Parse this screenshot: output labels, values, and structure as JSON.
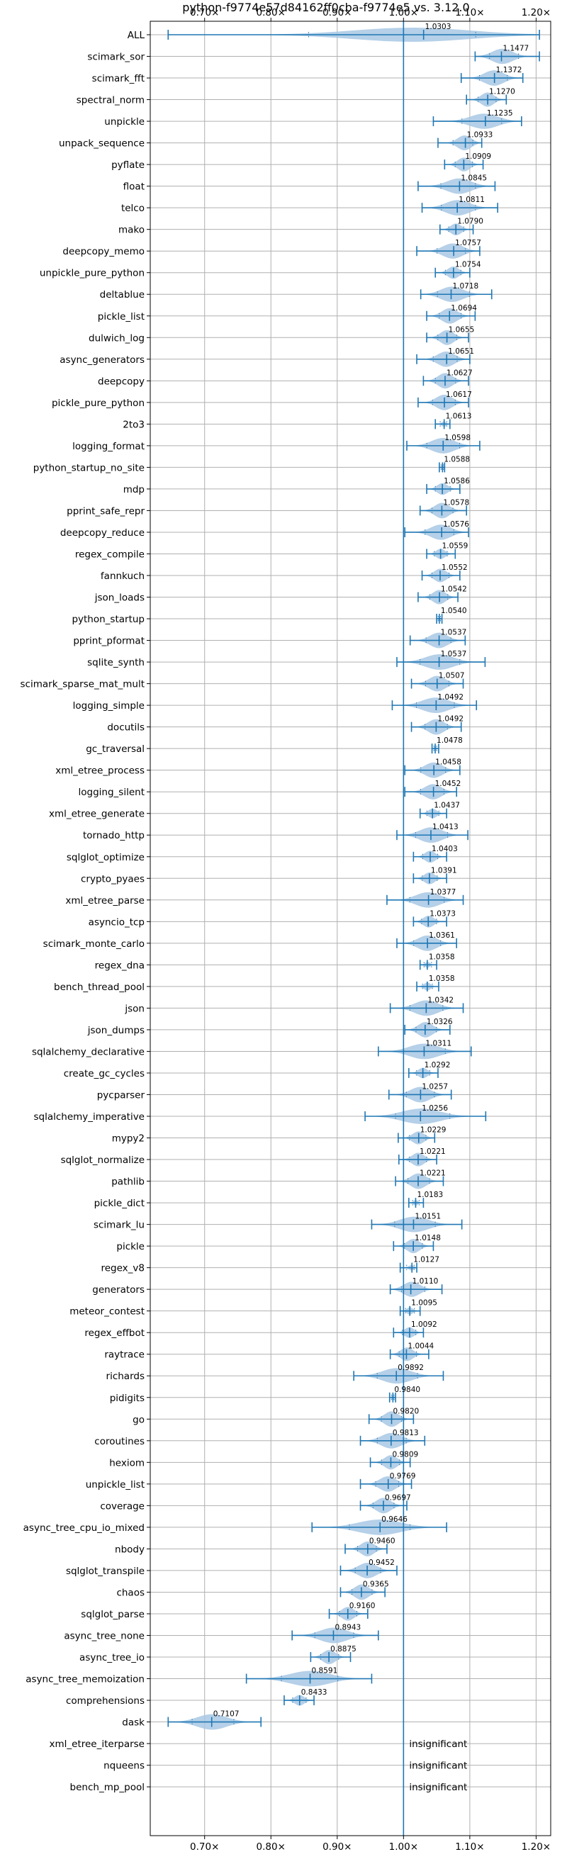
{
  "chart_data": {
    "type": "violin",
    "title": "python-f9774e57d84162ff0cba-f9774e5 vs. 3.12.0",
    "x_ticks": [
      0.7,
      0.8,
      0.9,
      1.0,
      1.1,
      1.2
    ],
    "x_tick_labels": [
      "0.70×",
      "0.80×",
      "0.90×",
      "1.00×",
      "1.10×",
      "1.20×"
    ],
    "xlim": [
      0.618,
      1.222
    ],
    "reference_line": 1.0,
    "grid": true,
    "colors": {
      "violin": "#a8c8e4",
      "line": "#1f77b4",
      "axis": "#000000",
      "grid": "#b0b0b0"
    },
    "benchmarks": [
      {
        "name": "ALL",
        "value": 1.0303,
        "label": "1.0303",
        "min": 0.645,
        "max": 1.205
      },
      {
        "name": "scimark_sor",
        "value": 1.1477,
        "label": "1.1477",
        "min": 1.108,
        "max": 1.205
      },
      {
        "name": "scimark_fft",
        "value": 1.1372,
        "label": "1.1372",
        "min": 1.087,
        "max": 1.18
      },
      {
        "name": "spectral_norm",
        "value": 1.127,
        "label": "1.1270",
        "min": 1.095,
        "max": 1.155
      },
      {
        "name": "unpickle",
        "value": 1.1235,
        "label": "1.1235",
        "min": 1.045,
        "max": 1.178
      },
      {
        "name": "unpack_sequence",
        "value": 1.0933,
        "label": "1.0933",
        "min": 1.052,
        "max": 1.118
      },
      {
        "name": "pyflate",
        "value": 1.0909,
        "label": "1.0909",
        "min": 1.062,
        "max": 1.12
      },
      {
        "name": "float",
        "value": 1.0845,
        "label": "1.0845",
        "min": 1.022,
        "max": 1.138
      },
      {
        "name": "telco",
        "value": 1.0811,
        "label": "1.0811",
        "min": 1.028,
        "max": 1.142
      },
      {
        "name": "mako",
        "value": 1.079,
        "label": "1.0790",
        "min": 1.055,
        "max": 1.105
      },
      {
        "name": "deepcopy_memo",
        "value": 1.0757,
        "label": "1.0757",
        "min": 1.02,
        "max": 1.115
      },
      {
        "name": "unpickle_pure_python",
        "value": 1.0754,
        "label": "1.0754",
        "min": 1.048,
        "max": 1.1
      },
      {
        "name": "deltablue",
        "value": 1.0718,
        "label": "1.0718",
        "min": 1.026,
        "max": 1.133
      },
      {
        "name": "pickle_list",
        "value": 1.0694,
        "label": "1.0694",
        "min": 1.035,
        "max": 1.108
      },
      {
        "name": "dulwich_log",
        "value": 1.0655,
        "label": "1.0655",
        "min": 1.035,
        "max": 1.098
      },
      {
        "name": "async_generators",
        "value": 1.0651,
        "label": "1.0651",
        "min": 1.02,
        "max": 1.1
      },
      {
        "name": "deepcopy",
        "value": 1.0627,
        "label": "1.0627",
        "min": 1.03,
        "max": 1.098
      },
      {
        "name": "pickle_pure_python",
        "value": 1.0617,
        "label": "1.0617",
        "min": 1.022,
        "max": 1.098
      },
      {
        "name": "2to3",
        "value": 1.0613,
        "label": "1.0613",
        "min": 1.048,
        "max": 1.07
      },
      {
        "name": "logging_format",
        "value": 1.0598,
        "label": "1.0598",
        "min": 1.005,
        "max": 1.115
      },
      {
        "name": "python_startup_no_site",
        "value": 1.0588,
        "label": "1.0588",
        "min": 1.054,
        "max": 1.062
      },
      {
        "name": "mdp",
        "value": 1.0586,
        "label": "1.0586",
        "min": 1.035,
        "max": 1.085
      },
      {
        "name": "pprint_safe_repr",
        "value": 1.0578,
        "label": "1.0578",
        "min": 1.025,
        "max": 1.095
      },
      {
        "name": "deepcopy_reduce",
        "value": 1.0576,
        "label": "1.0576",
        "min": 1.002,
        "max": 1.098
      },
      {
        "name": "regex_compile",
        "value": 1.0559,
        "label": "1.0559",
        "min": 1.035,
        "max": 1.078
      },
      {
        "name": "fannkuch",
        "value": 1.0552,
        "label": "1.0552",
        "min": 1.028,
        "max": 1.085
      },
      {
        "name": "json_loads",
        "value": 1.0542,
        "label": "1.0542",
        "min": 1.022,
        "max": 1.082
      },
      {
        "name": "python_startup",
        "value": 1.054,
        "label": "1.0540",
        "min": 1.05,
        "max": 1.058
      },
      {
        "name": "pprint_pformat",
        "value": 1.0537,
        "label": "1.0537",
        "min": 1.01,
        "max": 1.093
      },
      {
        "name": "sqlite_synth",
        "value": 1.0537,
        "label": "1.0537",
        "min": 0.99,
        "max": 1.123
      },
      {
        "name": "scimark_sparse_mat_mult",
        "value": 1.0507,
        "label": "1.0507",
        "min": 1.012,
        "max": 1.09
      },
      {
        "name": "logging_simple",
        "value": 1.0492,
        "label": "1.0492",
        "min": 0.983,
        "max": 1.11
      },
      {
        "name": "docutils",
        "value": 1.0492,
        "label": "1.0492",
        "min": 1.012,
        "max": 1.087
      },
      {
        "name": "gc_traversal",
        "value": 1.0478,
        "label": "1.0478",
        "min": 1.043,
        "max": 1.053
      },
      {
        "name": "xml_etree_process",
        "value": 1.0458,
        "label": "1.0458",
        "min": 1.002,
        "max": 1.085
      },
      {
        "name": "logging_silent",
        "value": 1.0452,
        "label": "1.0452",
        "min": 1.002,
        "max": 1.08
      },
      {
        "name": "xml_etree_generate",
        "value": 1.0437,
        "label": "1.0437",
        "min": 1.025,
        "max": 1.065
      },
      {
        "name": "tornado_http",
        "value": 1.0413,
        "label": "1.0413",
        "min": 0.99,
        "max": 1.097
      },
      {
        "name": "sqlglot_optimize",
        "value": 1.0403,
        "label": "1.0403",
        "min": 1.015,
        "max": 1.065
      },
      {
        "name": "crypto_pyaes",
        "value": 1.0391,
        "label": "1.0391",
        "min": 1.015,
        "max": 1.065
      },
      {
        "name": "xml_etree_parse",
        "value": 1.0377,
        "label": "1.0377",
        "min": 0.975,
        "max": 1.09
      },
      {
        "name": "asyncio_tcp",
        "value": 1.0373,
        "label": "1.0373",
        "min": 1.015,
        "max": 1.065
      },
      {
        "name": "scimark_monte_carlo",
        "value": 1.0361,
        "label": "1.0361",
        "min": 0.99,
        "max": 1.08
      },
      {
        "name": "regex_dna",
        "value": 1.0358,
        "label": "1.0358",
        "min": 1.025,
        "max": 1.05
      },
      {
        "name": "bench_thread_pool",
        "value": 1.0358,
        "label": "1.0358",
        "min": 1.02,
        "max": 1.053
      },
      {
        "name": "json",
        "value": 1.0342,
        "label": "1.0342",
        "min": 0.98,
        "max": 1.09
      },
      {
        "name": "json_dumps",
        "value": 1.0326,
        "label": "1.0326",
        "min": 1.002,
        "max": 1.07
      },
      {
        "name": "sqlalchemy_declarative",
        "value": 1.0311,
        "label": "1.0311",
        "min": 0.962,
        "max": 1.102
      },
      {
        "name": "create_gc_cycles",
        "value": 1.0292,
        "label": "1.0292",
        "min": 1.008,
        "max": 1.052
      },
      {
        "name": "pycparser",
        "value": 1.0257,
        "label": "1.0257",
        "min": 0.978,
        "max": 1.072
      },
      {
        "name": "sqlalchemy_imperative",
        "value": 1.0256,
        "label": "1.0256",
        "min": 0.942,
        "max": 1.124
      },
      {
        "name": "mypy2",
        "value": 1.0229,
        "label": "1.0229",
        "min": 0.992,
        "max": 1.047
      },
      {
        "name": "sqlglot_normalize",
        "value": 1.0221,
        "label": "1.0221",
        "min": 0.993,
        "max": 1.05
      },
      {
        "name": "pathlib",
        "value": 1.0221,
        "label": "1.0221",
        "min": 0.988,
        "max": 1.06
      },
      {
        "name": "pickle_dict",
        "value": 1.0183,
        "label": "1.0183",
        "min": 1.008,
        "max": 1.03
      },
      {
        "name": "scimark_lu",
        "value": 1.0151,
        "label": "1.0151",
        "min": 0.952,
        "max": 1.088
      },
      {
        "name": "pickle",
        "value": 1.0148,
        "label": "1.0148",
        "min": 0.985,
        "max": 1.045
      },
      {
        "name": "regex_v8",
        "value": 1.0127,
        "label": "1.0127",
        "min": 0.995,
        "max": 1.02
      },
      {
        "name": "generators",
        "value": 1.011,
        "label": "1.0110",
        "min": 0.98,
        "max": 1.058
      },
      {
        "name": "meteor_contest",
        "value": 1.0095,
        "label": "1.0095",
        "min": 0.995,
        "max": 1.025
      },
      {
        "name": "regex_effbot",
        "value": 1.0092,
        "label": "1.0092",
        "min": 0.985,
        "max": 1.03
      },
      {
        "name": "raytrace",
        "value": 1.0044,
        "label": "1.0044",
        "min": 0.98,
        "max": 1.038
      },
      {
        "name": "richards",
        "value": 0.9892,
        "label": "0.9892",
        "min": 0.925,
        "max": 1.06
      },
      {
        "name": "pidigits",
        "value": 0.984,
        "label": "0.9840",
        "min": 0.979,
        "max": 0.988
      },
      {
        "name": "go",
        "value": 0.982,
        "label": "0.9820",
        "min": 0.948,
        "max": 1.015
      },
      {
        "name": "coroutines",
        "value": 0.9813,
        "label": "0.9813",
        "min": 0.935,
        "max": 1.032
      },
      {
        "name": "hexiom",
        "value": 0.9809,
        "label": "0.9809",
        "min": 0.95,
        "max": 1.01
      },
      {
        "name": "unpickle_list",
        "value": 0.9769,
        "label": "0.9769",
        "min": 0.935,
        "max": 1.012
      },
      {
        "name": "coverage",
        "value": 0.9697,
        "label": "0.9697",
        "min": 0.935,
        "max": 1.005
      },
      {
        "name": "async_tree_cpu_io_mixed",
        "value": 0.9646,
        "label": "0.9646",
        "min": 0.862,
        "max": 1.065
      },
      {
        "name": "nbody",
        "value": 0.946,
        "label": "0.9460",
        "min": 0.912,
        "max": 0.975
      },
      {
        "name": "sqlglot_transpile",
        "value": 0.9452,
        "label": "0.9452",
        "min": 0.905,
        "max": 0.99
      },
      {
        "name": "chaos",
        "value": 0.9365,
        "label": "0.9365",
        "min": 0.905,
        "max": 0.972
      },
      {
        "name": "sqlglot_parse",
        "value": 0.916,
        "label": "0.9160",
        "min": 0.888,
        "max": 0.946
      },
      {
        "name": "async_tree_none",
        "value": 0.8943,
        "label": "0.8943",
        "min": 0.832,
        "max": 0.962
      },
      {
        "name": "async_tree_io",
        "value": 0.8875,
        "label": "0.8875",
        "min": 0.86,
        "max": 0.92
      },
      {
        "name": "async_tree_memoization",
        "value": 0.8591,
        "label": "0.8591",
        "min": 0.763,
        "max": 0.952
      },
      {
        "name": "comprehensions",
        "value": 0.8433,
        "label": "0.8433",
        "min": 0.82,
        "max": 0.865
      },
      {
        "name": "dask",
        "value": 0.7107,
        "label": "0.7107",
        "min": 0.645,
        "max": 0.785
      },
      {
        "name": "xml_etree_iterparse",
        "value": null,
        "label": "insignificant"
      },
      {
        "name": "nqueens",
        "value": null,
        "label": "insignificant"
      },
      {
        "name": "bench_mp_pool",
        "value": null,
        "label": "insignificant"
      }
    ]
  }
}
